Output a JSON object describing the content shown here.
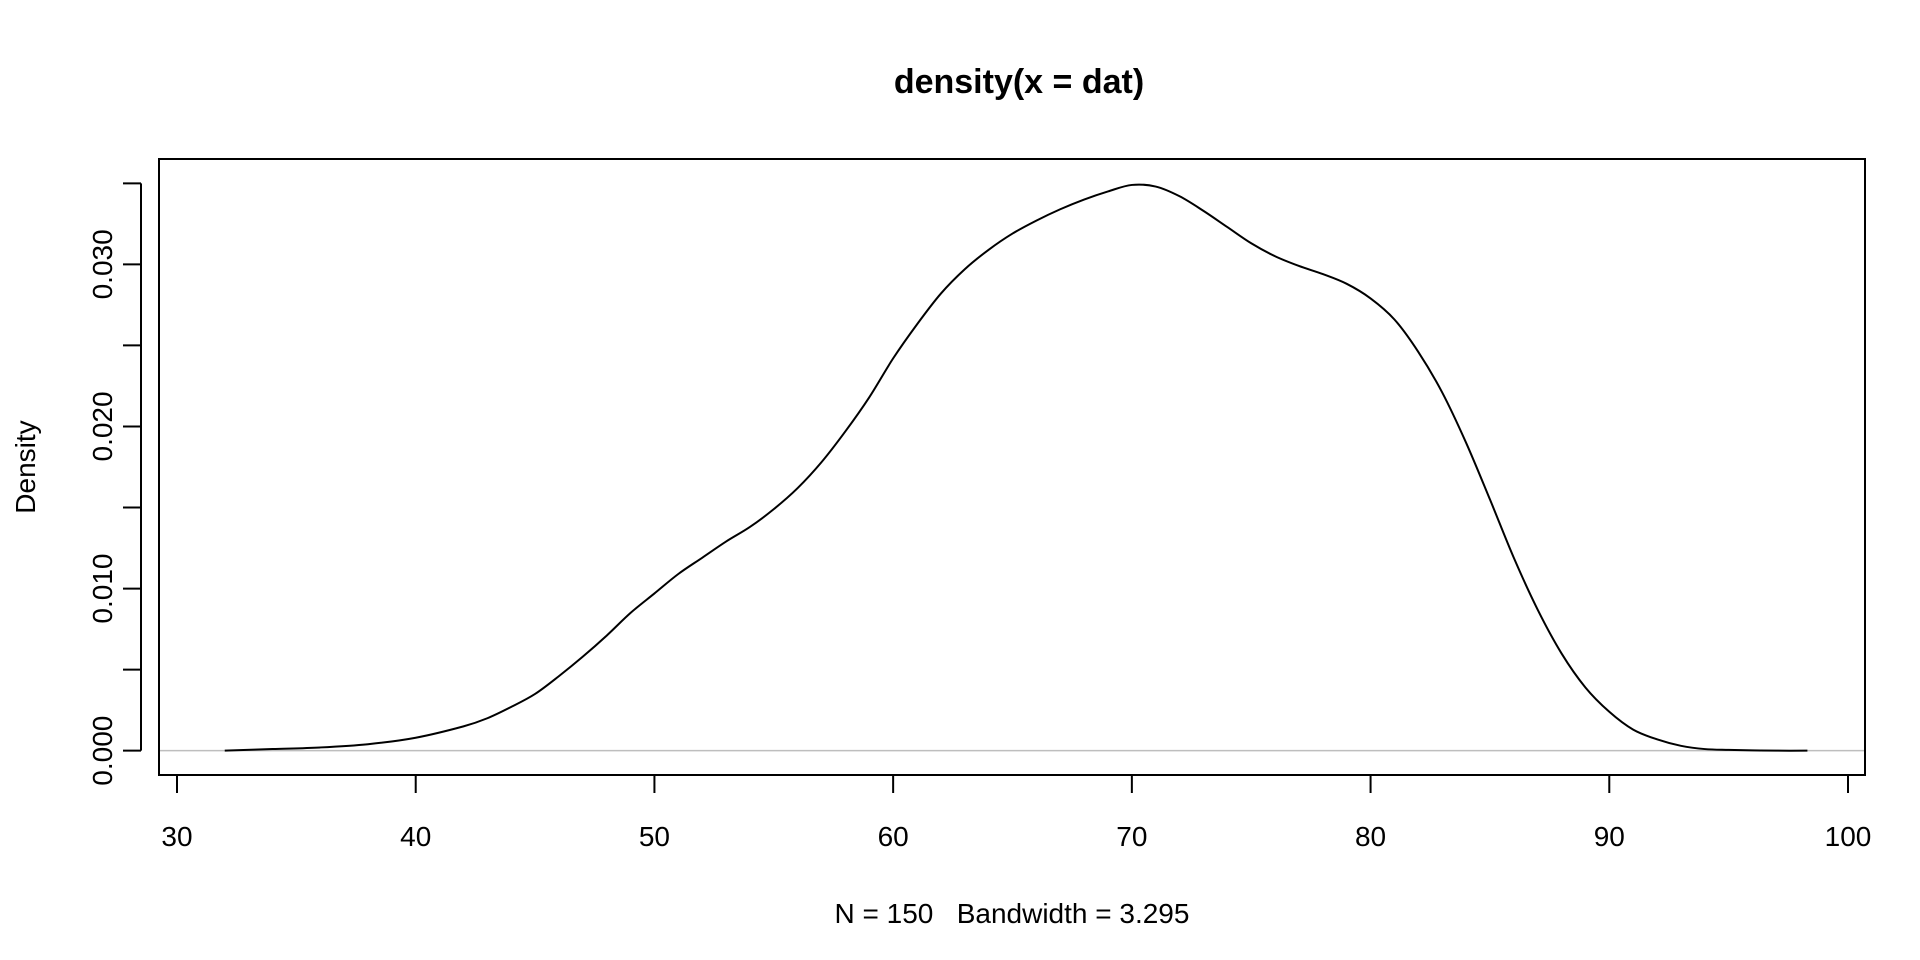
{
  "chart_data": {
    "type": "line",
    "title": "density(x = dat)",
    "xlabel": "N = 150   Bandwidth = 3.295",
    "ylabel": "Density",
    "xlim": [
      30,
      100
    ],
    "ylim": [
      -0.0015,
      0.0365
    ],
    "x_ticks": [
      30,
      40,
      50,
      60,
      70,
      80,
      90,
      100
    ],
    "x_tick_labels": [
      "30",
      "40",
      "50",
      "60",
      "70",
      "80",
      "90",
      "100"
    ],
    "y_ticks": [
      0.0,
      0.005,
      0.01,
      0.015,
      0.02,
      0.025,
      0.03,
      0.035
    ],
    "y_tick_labels": [
      "0.000",
      "0.010",
      "0.020",
      "0.030"
    ],
    "y_labeled_ticks": [
      0.0,
      0.01,
      0.02,
      0.03
    ],
    "grid": false,
    "baseline": 0,
    "series": [
      {
        "x": [
          32,
          34,
          36,
          38,
          40,
          42,
          43,
          44,
          45,
          46,
          47,
          48,
          49,
          50,
          51,
          52,
          53,
          54,
          55,
          56,
          57,
          58,
          59,
          60,
          61,
          62,
          63,
          64,
          65,
          66,
          67,
          68,
          69,
          70,
          71,
          72,
          73,
          74,
          75,
          76,
          77,
          78,
          79,
          80,
          81,
          82,
          83,
          84,
          85,
          86,
          87,
          88,
          89,
          90,
          91,
          92,
          93,
          94,
          95,
          96,
          97,
          98.3
        ],
        "y": [
          0.0,
          0.0001,
          0.0002,
          0.0004,
          0.0008,
          0.0015,
          0.002,
          0.0027,
          0.0035,
          0.0046,
          0.0058,
          0.0071,
          0.0085,
          0.0097,
          0.0109,
          0.0119,
          0.0129,
          0.0138,
          0.0149,
          0.0162,
          0.0178,
          0.0197,
          0.0218,
          0.0242,
          0.0263,
          0.0282,
          0.0297,
          0.0309,
          0.0319,
          0.0327,
          0.0334,
          0.034,
          0.0345,
          0.0349,
          0.0348,
          0.0342,
          0.0333,
          0.0323,
          0.0313,
          0.0305,
          0.0299,
          0.0294,
          0.0288,
          0.0279,
          0.0266,
          0.0246,
          0.0221,
          0.019,
          0.0155,
          0.0119,
          0.0087,
          0.006,
          0.0039,
          0.0024,
          0.0013,
          0.0007,
          0.0003,
          0.0001,
          5e-05,
          2e-05,
          0.0,
          0.0
        ]
      }
    ]
  },
  "colors": {
    "line": "#000000",
    "baseline": "#bebebe",
    "frame": "#000000"
  }
}
